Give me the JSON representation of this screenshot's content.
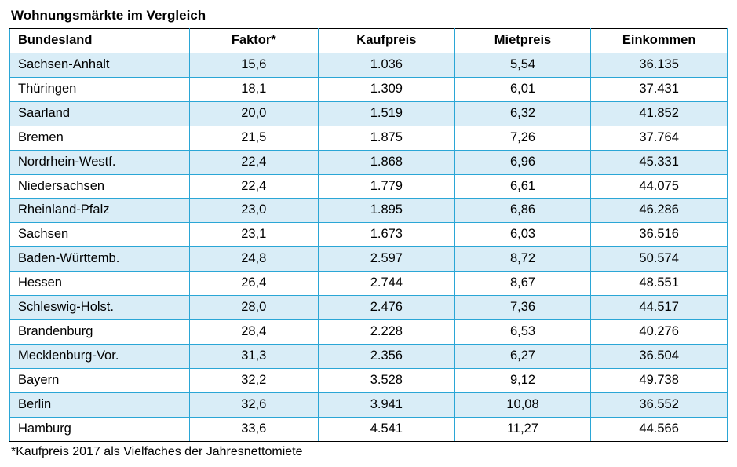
{
  "title": "Wohnungsmärkte im Vergleich",
  "footnote": "*Kaufpreis 2017 als Vielfaches der Jahresnettomiete",
  "table": {
    "columns": [
      "Bundesland",
      "Faktor*",
      "Kaufpreis",
      "Mietpreis",
      "Einkommen"
    ],
    "column_align": [
      "left",
      "center",
      "center",
      "center",
      "center"
    ],
    "column_widths_pct": [
      25,
      18,
      19,
      19,
      19
    ],
    "header_bg": "#ffffff",
    "row_even_bg": "#d9edf7",
    "row_odd_bg": "#ffffff",
    "border_color": "#2aa6d6",
    "outer_border_color": "#000000",
    "font_size_pt": 12,
    "rows": [
      [
        "Sachsen-Anhalt",
        "15,6",
        "1.036",
        "5,54",
        "36.135"
      ],
      [
        "Thüringen",
        "18,1",
        "1.309",
        "6,01",
        "37.431"
      ],
      [
        "Saarland",
        "20,0",
        "1.519",
        "6,32",
        "41.852"
      ],
      [
        "Bremen",
        "21,5",
        "1.875",
        "7,26",
        "37.764"
      ],
      [
        "Nordrhein-Westf.",
        "22,4",
        "1.868",
        "6,96",
        "45.331"
      ],
      [
        "Niedersachsen",
        "22,4",
        "1.779",
        "6,61",
        "44.075"
      ],
      [
        "Rheinland-Pfalz",
        "23,0",
        "1.895",
        "6,86",
        "46.286"
      ],
      [
        "Sachsen",
        "23,1",
        "1.673",
        "6,03",
        "36.516"
      ],
      [
        "Baden-Württemb.",
        "24,8",
        "2.597",
        "8,72",
        "50.574"
      ],
      [
        "Hessen",
        "26,4",
        "2.744",
        "8,67",
        "48.551"
      ],
      [
        "Schleswig-Holst.",
        "28,0",
        "2.476",
        "7,36",
        "44.517"
      ],
      [
        "Brandenburg",
        "28,4",
        "2.228",
        "6,53",
        "40.276"
      ],
      [
        "Mecklenburg-Vor.",
        "31,3",
        "2.356",
        "6,27",
        "36.504"
      ],
      [
        "Bayern",
        "32,2",
        "3.528",
        "9,12",
        "49.738"
      ],
      [
        "Berlin",
        "32,6",
        "3.941",
        "10,08",
        "36.552"
      ],
      [
        "Hamburg",
        "33,6",
        "4.541",
        "11,27",
        "44.566"
      ]
    ]
  }
}
